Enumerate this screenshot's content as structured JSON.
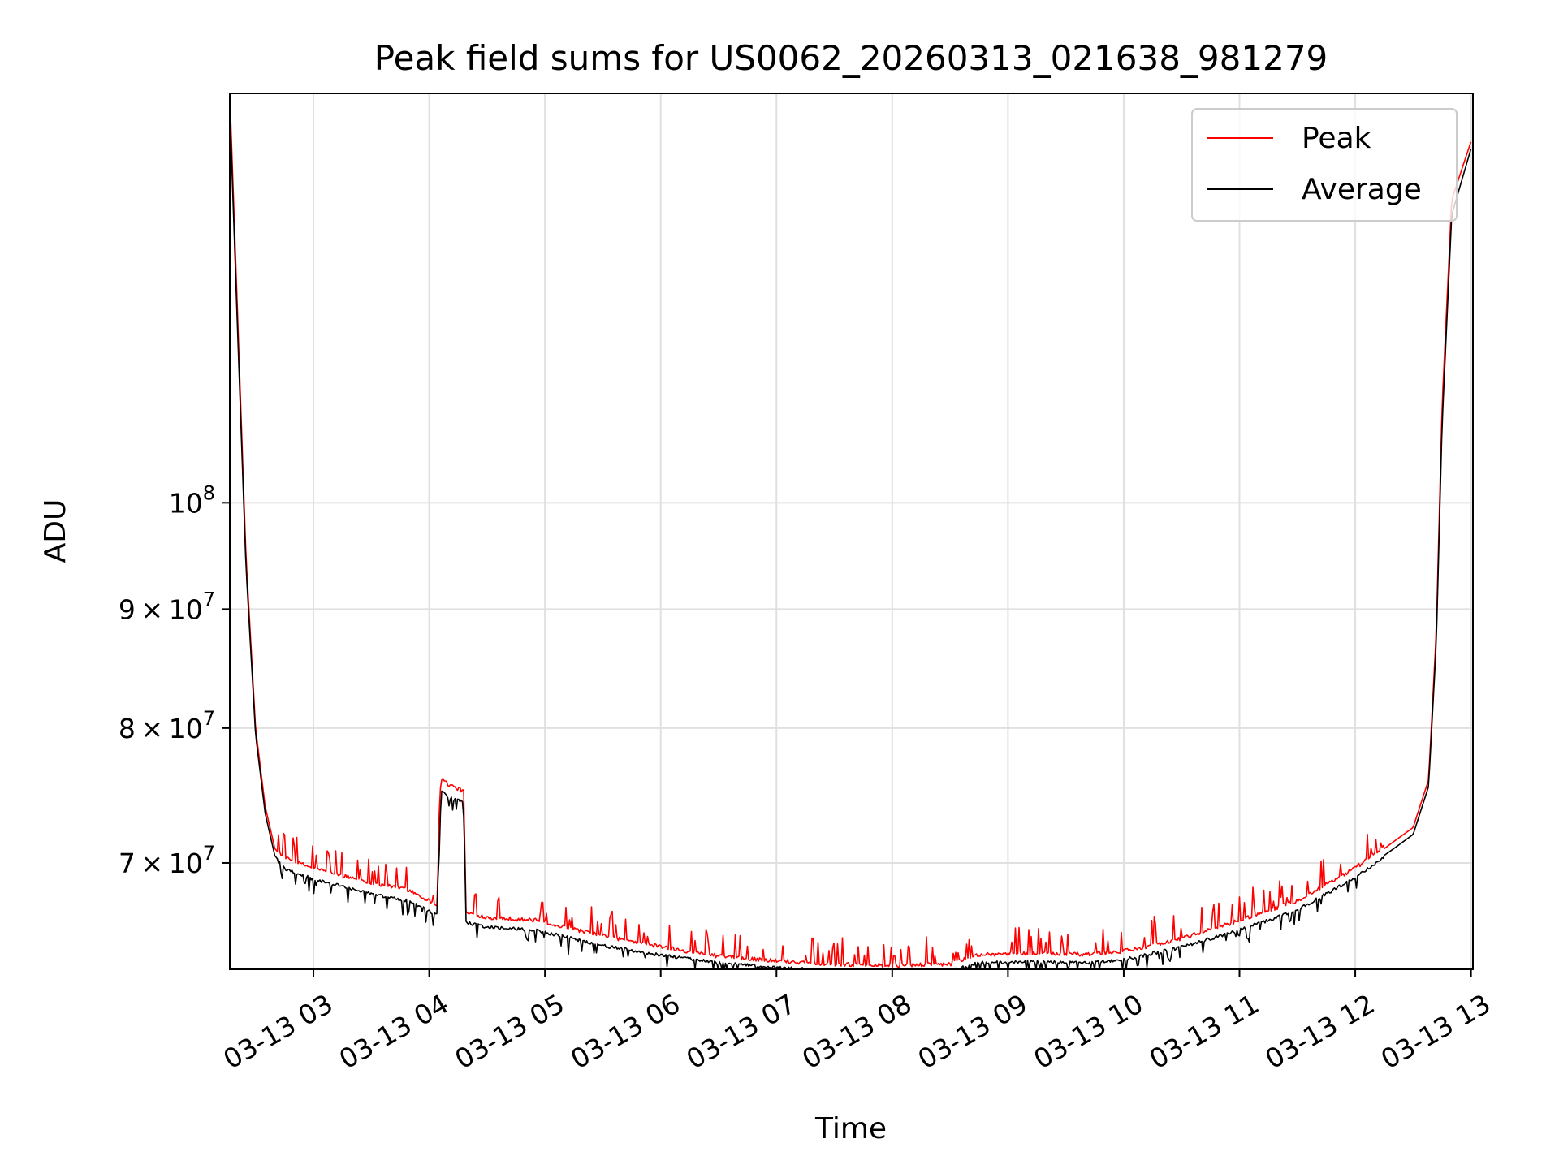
{
  "chart_data": {
    "type": "line",
    "title": "Peak field sums for US0062_20260313_021638_981279",
    "xlabel": "Time",
    "ylabel": "ADU",
    "x_axis_kind": "datetime",
    "x_range": [
      "2026-03-13T02:16:38",
      "2026-03-13T13:01:00"
    ],
    "x_ticks": [
      {
        "value": "2026-03-13T03:00",
        "label": "03-13 03"
      },
      {
        "value": "2026-03-13T04:00",
        "label": "03-13 04"
      },
      {
        "value": "2026-03-13T05:00",
        "label": "03-13 05"
      },
      {
        "value": "2026-03-13T06:00",
        "label": "03-13 06"
      },
      {
        "value": "2026-03-13T07:00",
        "label": "03-13 07"
      },
      {
        "value": "2026-03-13T08:00",
        "label": "03-13 08"
      },
      {
        "value": "2026-03-13T09:00",
        "label": "03-13 09"
      },
      {
        "value": "2026-03-13T10:00",
        "label": "03-13 10"
      },
      {
        "value": "2026-03-13T11:00",
        "label": "03-13 11"
      },
      {
        "value": "2026-03-13T12:00",
        "label": "03-13 12"
      },
      {
        "value": "2026-03-13T13:00",
        "label": "03-13 13"
      }
    ],
    "y_scale": "log",
    "ylim": [
      63000000,
      150000000
    ],
    "y_ticks": [
      {
        "value": 70000000,
        "base": "7",
        "mult": "×",
        "power": "10",
        "exp": "7"
      },
      {
        "value": 80000000,
        "base": "8",
        "mult": "×",
        "power": "10",
        "exp": "7"
      },
      {
        "value": 90000000,
        "base": "9",
        "mult": "×",
        "power": "10",
        "exp": "7"
      },
      {
        "value": 100000000,
        "base": "",
        "mult": "",
        "power": "10",
        "exp": "8"
      }
    ],
    "grid": true,
    "legend_position": "upper-right",
    "series": [
      {
        "name": "Peak",
        "color": "#ff0000",
        "noise": "spiky",
        "x": [
          "2026-03-13T02:16:38",
          "2026-03-13T02:20",
          "2026-03-13T02:25",
          "2026-03-13T02:30",
          "2026-03-13T02:35",
          "2026-03-13T02:40",
          "2026-03-13T02:45",
          "2026-03-13T03:00",
          "2026-03-13T03:30",
          "2026-03-13T03:50",
          "2026-03-13T04:04",
          "2026-03-13T04:06",
          "2026-03-13T04:10",
          "2026-03-13T04:18",
          "2026-03-13T04:19",
          "2026-03-13T04:30",
          "2026-03-13T04:55",
          "2026-03-13T05:30",
          "2026-03-13T06:00",
          "2026-03-13T06:30",
          "2026-03-13T07:00",
          "2026-03-13T07:30",
          "2026-03-13T08:00",
          "2026-03-13T08:30",
          "2026-03-13T08:45",
          "2026-03-13T09:15",
          "2026-03-13T09:40",
          "2026-03-13T10:00",
          "2026-03-13T10:30",
          "2026-03-13T11:00",
          "2026-03-13T11:30",
          "2026-03-13T12:00",
          "2026-03-13T12:20",
          "2026-03-13T12:30",
          "2026-03-13T12:38",
          "2026-03-13T12:42",
          "2026-03-13T12:45",
          "2026-03-13T12:50",
          "2026-03-13T13:00"
        ],
        "y": [
          150000000,
          125000000,
          95000000,
          80000000,
          74000000,
          71000000,
          70200000,
          69500000,
          68500000,
          68000000,
          67000000,
          76000000,
          75500000,
          75000000,
          66500000,
          66200000,
          66000000,
          65000000,
          64300000,
          63700000,
          63400000,
          63200000,
          63100000,
          63200000,
          63800000,
          63900000,
          63800000,
          64000000,
          64800000,
          66000000,
          67300000,
          69500000,
          71500000,
          72500000,
          76000000,
          88000000,
          110000000,
          135000000,
          143000000
        ]
      },
      {
        "name": "Average",
        "color": "#000000",
        "noise": "dips",
        "x": [
          "2026-03-13T02:16:38",
          "2026-03-13T02:20",
          "2026-03-13T02:25",
          "2026-03-13T02:30",
          "2026-03-13T02:35",
          "2026-03-13T02:40",
          "2026-03-13T02:45",
          "2026-03-13T03:00",
          "2026-03-13T03:30",
          "2026-03-13T03:50",
          "2026-03-13T04:04",
          "2026-03-13T04:06",
          "2026-03-13T04:10",
          "2026-03-13T04:18",
          "2026-03-13T04:19",
          "2026-03-13T04:30",
          "2026-03-13T04:55",
          "2026-03-13T05:30",
          "2026-03-13T06:00",
          "2026-03-13T06:30",
          "2026-03-13T07:00",
          "2026-03-13T07:30",
          "2026-03-13T08:00",
          "2026-03-13T08:30",
          "2026-03-13T08:45",
          "2026-03-13T09:15",
          "2026-03-13T09:40",
          "2026-03-13T10:00",
          "2026-03-13T10:30",
          "2026-03-13T11:00",
          "2026-03-13T11:30",
          "2026-03-13T12:00",
          "2026-03-13T12:20",
          "2026-03-13T12:30",
          "2026-03-13T12:38",
          "2026-03-13T12:42",
          "2026-03-13T12:45",
          "2026-03-13T12:50",
          "2026-03-13T13:00"
        ],
        "y": [
          148000000,
          123000000,
          94000000,
          79500000,
          73500000,
          70500000,
          69700000,
          69000000,
          68000000,
          67500000,
          66600000,
          75300000,
          74800000,
          74500000,
          66100000,
          65800000,
          65600000,
          64600000,
          64000000,
          63500000,
          63200000,
          63000000,
          62900000,
          63000000,
          63500000,
          63600000,
          63500000,
          63700000,
          64500000,
          65600000,
          66900000,
          69100000,
          71000000,
          72000000,
          75500000,
          87000000,
          108000000,
          133000000,
          142000000
        ]
      }
    ]
  }
}
